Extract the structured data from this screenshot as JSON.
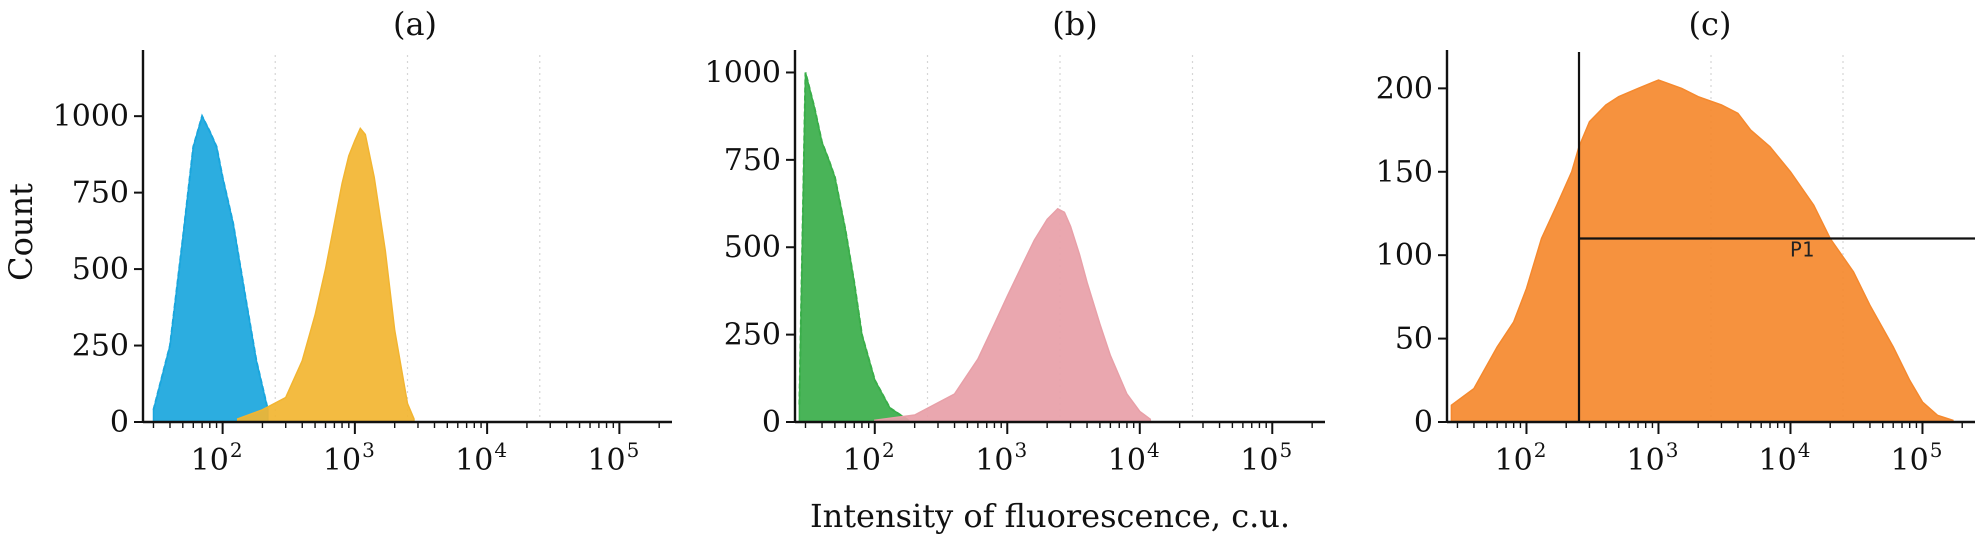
{
  "figure": {
    "ylabel": "Count",
    "xlabel": "Intensity of fluorescence, c.u."
  },
  "chart_data": [
    {
      "type": "area",
      "panel": "(a)",
      "xscale": "log",
      "xlim": [
        25,
        250000
      ],
      "ylim": [
        0,
        1200
      ],
      "x_ticks": [
        {
          "base": "10",
          "exp": "2",
          "value": 100
        },
        {
          "base": "10",
          "exp": "3",
          "value": 1000
        },
        {
          "base": "10",
          "exp": "4",
          "value": 10000
        },
        {
          "base": "10",
          "exp": "5",
          "value": 100000
        }
      ],
      "y_ticks": [
        0,
        250,
        500,
        750,
        1000
      ],
      "y_tick_labels": [
        "0",
        "250",
        "500",
        "750",
        "1000"
      ],
      "vgrid": [
        250,
        2500,
        25000
      ],
      "series": [
        {
          "color": "#1aa6dd",
          "dashed_outline": true,
          "x": [
            30,
            40,
            50,
            60,
            70,
            80,
            90,
            100,
            120,
            150,
            180,
            220
          ],
          "y": [
            40,
            250,
            600,
            900,
            1000,
            950,
            900,
            800,
            650,
            400,
            200,
            40
          ]
        },
        {
          "color": "#f2b531",
          "x": [
            130,
            200,
            300,
            400,
            500,
            600,
            700,
            800,
            900,
            1000,
            1100,
            1200,
            1400,
            1700,
            2000,
            2500,
            2800
          ],
          "y": [
            10,
            40,
            80,
            200,
            350,
            500,
            650,
            780,
            870,
            920,
            960,
            940,
            800,
            560,
            300,
            60,
            10
          ]
        }
      ]
    },
    {
      "type": "area",
      "panel": "(b)",
      "xscale": "log",
      "xlim": [
        25,
        250000
      ],
      "ylim": [
        0,
        1050
      ],
      "x_ticks": [
        {
          "base": "10",
          "exp": "2",
          "value": 100
        },
        {
          "base": "10",
          "exp": "3",
          "value": 1000
        },
        {
          "base": "10",
          "exp": "4",
          "value": 10000
        },
        {
          "base": "10",
          "exp": "5",
          "value": 100000
        }
      ],
      "y_ticks": [
        0,
        250,
        500,
        750,
        1000
      ],
      "y_tick_labels": [
        "0",
        "250",
        "500",
        "750",
        "1000"
      ],
      "vgrid": [
        250,
        2500,
        25000
      ],
      "series": [
        {
          "color": "#3aae4a",
          "dashed_outline": true,
          "x": [
            27,
            30,
            35,
            40,
            45,
            50,
            60,
            70,
            80,
            100,
            130,
            180
          ],
          "y": [
            50,
            1000,
            900,
            800,
            750,
            700,
            550,
            400,
            250,
            120,
            40,
            5
          ]
        },
        {
          "color": "#e8a0a8",
          "x": [
            100,
            200,
            400,
            600,
            800,
            1000,
            1300,
            1600,
            2000,
            2400,
            2700,
            3000,
            3500,
            4000,
            5000,
            6000,
            8000,
            10000,
            12000
          ],
          "y": [
            5,
            20,
            80,
            180,
            280,
            360,
            450,
            520,
            580,
            610,
            600,
            560,
            480,
            400,
            280,
            190,
            80,
            30,
            8
          ]
        }
      ]
    },
    {
      "type": "area",
      "panel": "(c)",
      "xscale": "log",
      "xlim": [
        25,
        250000
      ],
      "ylim": [
        0,
        220
      ],
      "x_ticks": [
        {
          "base": "10",
          "exp": "2",
          "value": 100
        },
        {
          "base": "10",
          "exp": "3",
          "value": 1000
        },
        {
          "base": "10",
          "exp": "4",
          "value": 10000
        },
        {
          "base": "10",
          "exp": "5",
          "value": 100000
        }
      ],
      "y_ticks": [
        0,
        50,
        100,
        150,
        200
      ],
      "y_tick_labels": [
        "0",
        "50",
        "100",
        "150",
        "200"
      ],
      "vgrid": [
        2500,
        25000
      ],
      "gate": {
        "label": "P1",
        "x_min": 250,
        "y": 110
      },
      "series": [
        {
          "color": "#f5892e",
          "x": [
            27,
            40,
            60,
            80,
            100,
            130,
            170,
            220,
            250,
            300,
            400,
            500,
            700,
            1000,
            1500,
            2000,
            3000,
            4000,
            5000,
            7000,
            10000,
            15000,
            20000,
            30000,
            40000,
            60000,
            80000,
            100000,
            130000,
            170000
          ],
          "y": [
            10,
            20,
            45,
            60,
            80,
            110,
            130,
            150,
            165,
            180,
            190,
            195,
            200,
            205,
            200,
            195,
            190,
            185,
            175,
            165,
            150,
            130,
            110,
            90,
            70,
            45,
            25,
            12,
            4,
            1
          ]
        }
      ]
    }
  ]
}
